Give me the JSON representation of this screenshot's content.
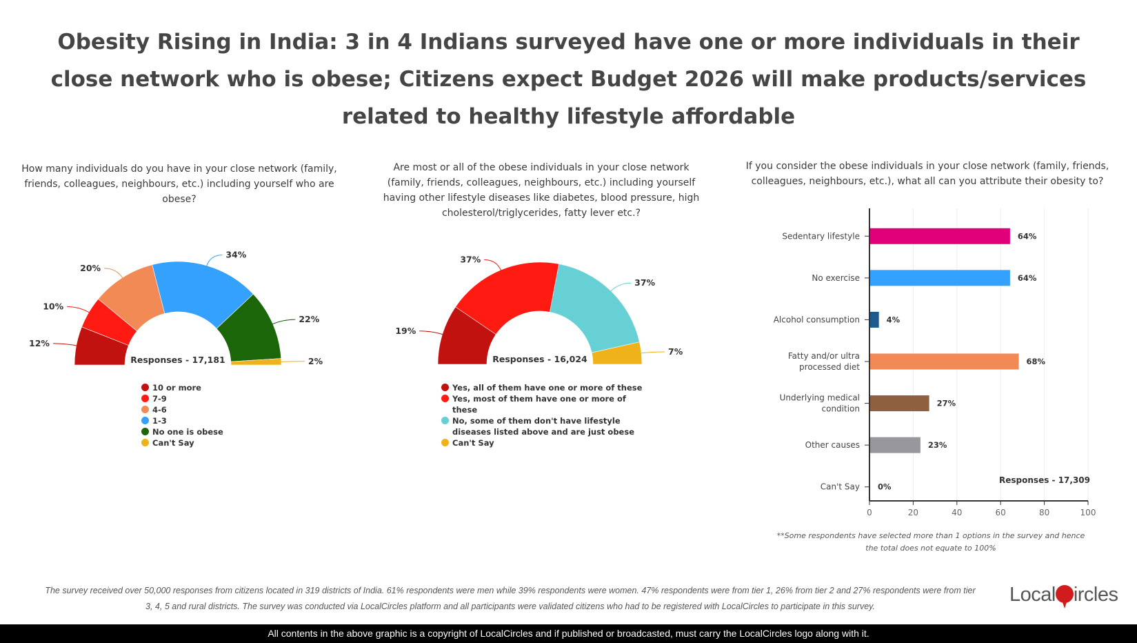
{
  "title": "Obesity Rising in India: 3 in 4 Indians surveyed have one or more individuals in their close network who is obese; Citizens expect Budget 2026 will make products/services related to healthy lifestyle affordable",
  "chart_data": [
    {
      "type": "pie",
      "variant": "semi-donut",
      "question": "How many individuals do you have in your close network (family, friends, colleagues, neighbours, etc.) including yourself who are obese?",
      "responses": "Responses - 17,181",
      "categories": [
        "10 or more",
        "7-9",
        "4-6",
        "1-3",
        "No one is obese",
        "Can't Say"
      ],
      "values": [
        12,
        10,
        20,
        34,
        22,
        2
      ],
      "labels": [
        "12%",
        "10%",
        "20%",
        "34%",
        "22%",
        "2%"
      ],
      "colors": [
        "#c1120f",
        "#ff1a12",
        "#f28a55",
        "#33a1fd",
        "#1b6609",
        "#f0b21b"
      ],
      "legend": "bottom"
    },
    {
      "type": "pie",
      "variant": "semi-donut",
      "question": "Are most or all of the obese individuals in your close network (family, friends, colleagues, neighbours, etc.) including yourself having other lifestyle diseases like diabetes, blood pressure, high cholesterol/triglycerides, fatty lever etc.?",
      "responses": "Responses - 16,024",
      "categories": [
        "Yes, all of them have one or more of these",
        "Yes, most of them have one or more of these",
        "No, some of them don't have lifestyle diseases listed above and are just obese",
        "Can't Say"
      ],
      "values": [
        19,
        37,
        37,
        7
      ],
      "labels": [
        "19%",
        "37%",
        "37%",
        "7%"
      ],
      "colors": [
        "#c1120f",
        "#ff1a12",
        "#66d0d4",
        "#f0b21b"
      ],
      "legend": "bottom"
    },
    {
      "type": "bar",
      "orientation": "horizontal",
      "question": "If you consider the obese individuals in your close network (family, friends, colleagues, neighbours, etc.), what all can you attribute their obesity to?",
      "responses": "Responses - 17,309",
      "categories": [
        "Sedentary lifestyle",
        "No exercise",
        "Alcohol consumption",
        "Fatty and/or ultra processed diet",
        "Underlying medical condition",
        "Other causes",
        "Can't Say"
      ],
      "values": [
        64,
        64,
        4,
        68,
        27,
        23,
        0
      ],
      "labels": [
        "64%",
        "64%",
        "4%",
        "68%",
        "27%",
        "23%",
        "0%"
      ],
      "colors": [
        "#e0007a",
        "#33a1fd",
        "#1f5a8c",
        "#f28a55",
        "#8f6040",
        "#97979c",
        "#97979c"
      ],
      "xlim": [
        0,
        100
      ],
      "xticks": [
        "0",
        "20",
        "40",
        "60",
        "80",
        "100"
      ],
      "grid": true,
      "footnote": "**Some respondents have selected more than 1 options in the survey and hence the total does not equate to 100%"
    }
  ],
  "survey_note": "The survey received over 50,000 responses from citizens located in 319 districts of India. 61% respondents were men while 39% respondents were women. 47% respondents were from tier 1, 26% from tier 2 and 27% respondents were from tier 3, 4, 5 and rural districts. The survey was conducted via LocalCircles platform and all participants were validated citizens who had to be registered with LocalCircles to participate in this survey.",
  "logo": {
    "left": "Local",
    "right": "ircles"
  },
  "copyright": "All contents in the above graphic is a copyright of LocalCircles and if published or broadcasted, must carry the LocalCircles logo along with it."
}
